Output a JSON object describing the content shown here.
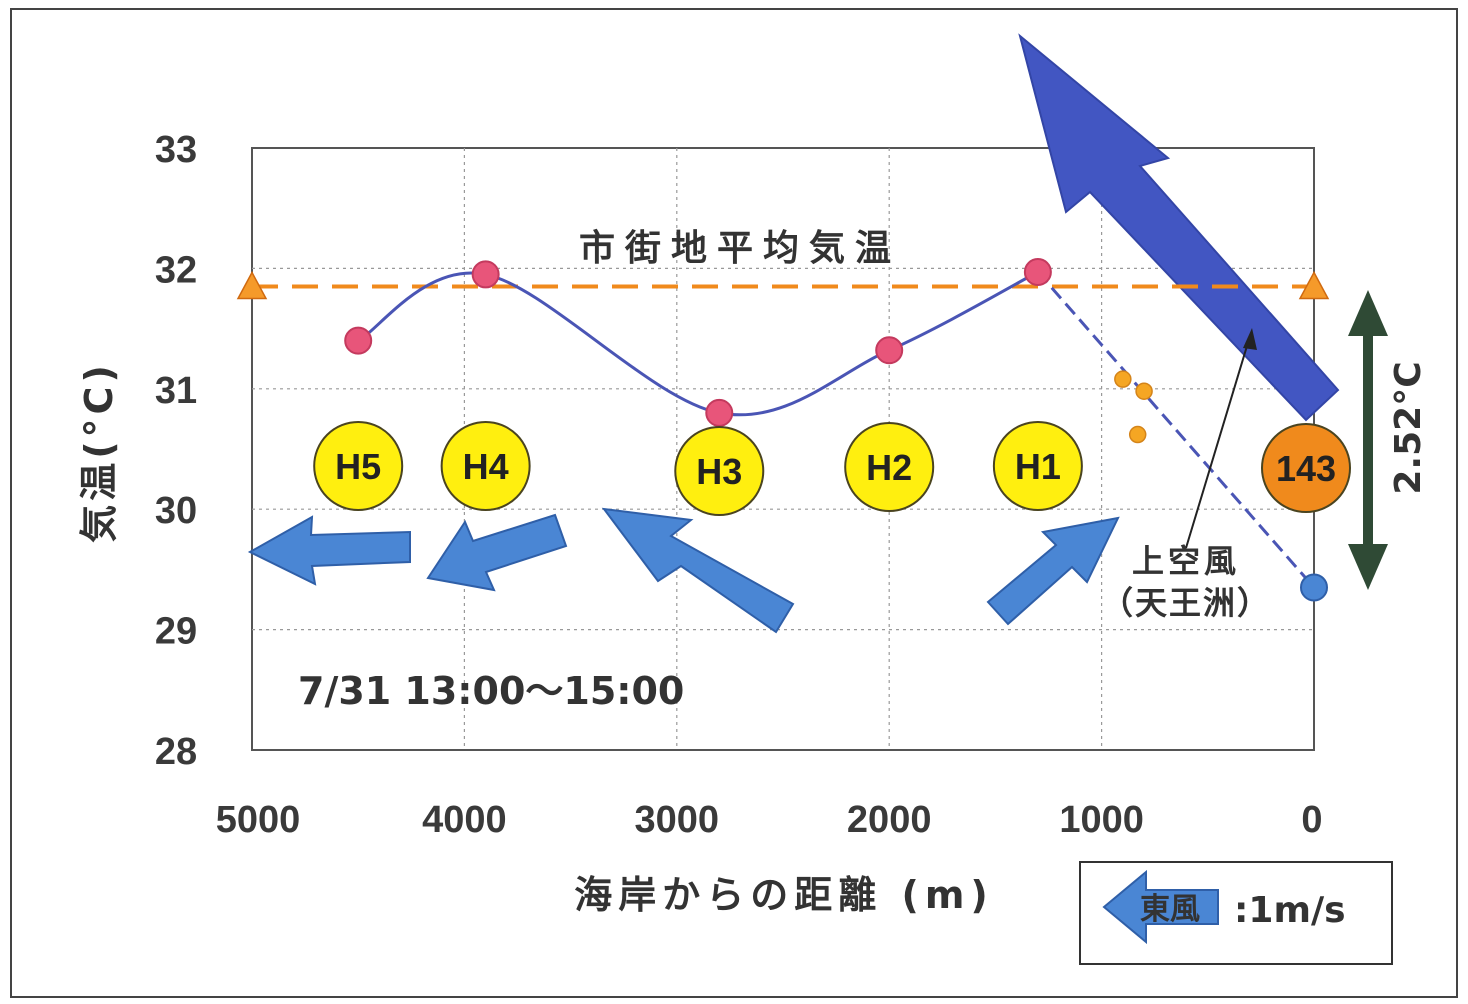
{
  "chart_data": {
    "type": "line",
    "xlabel": "海岸からの距離 (m)",
    "ylabel": "気温(°C)",
    "xlim": [
      5000,
      0
    ],
    "ylim": [
      28,
      33
    ],
    "x_ticks": [
      "5000",
      "4000",
      "3000",
      "2000",
      "1000",
      "0"
    ],
    "y_ticks": [
      "28",
      "29",
      "30",
      "31",
      "32",
      "33"
    ],
    "grid": true,
    "series": [
      {
        "style": "smooth-solid",
        "color": "#4a55b5",
        "points": [
          {
            "x": 4500,
            "y": 31.4
          },
          {
            "x": 3900,
            "y": 31.95
          },
          {
            "x": 2800,
            "y": 30.8
          },
          {
            "x": 2000,
            "y": 31.32
          },
          {
            "x": 1300,
            "y": 31.97
          }
        ]
      },
      {
        "style": "dashed",
        "color": "#4a55b5",
        "points": [
          {
            "x": 1300,
            "y": 31.97
          },
          {
            "x": 0,
            "y": 29.35
          }
        ]
      }
    ],
    "reference_line": {
      "label": "市街地平均気温",
      "y": 31.85,
      "color": "#f08a1c"
    },
    "orange_dots": [
      {
        "x": 900,
        "y": 31.08
      },
      {
        "x": 800,
        "y": 30.98
      },
      {
        "x": 830,
        "y": 30.62
      }
    ],
    "sites": [
      {
        "label": "H5",
        "x": 4500
      },
      {
        "label": "H4",
        "x": 3900
      },
      {
        "label": "H3",
        "x": 2800
      },
      {
        "label": "H2",
        "x": 2000
      },
      {
        "label": "H1",
        "x": 1300
      },
      {
        "label": "143",
        "x": 0
      }
    ],
    "annotations": {
      "period": "7/31 13:00～15:00",
      "diff": "2.52°C",
      "upper_wind_line1": "上空風",
      "upper_wind_line2": "（天王洲）"
    },
    "legend": {
      "arrow_label": "東風",
      "scale_text": ":1m/s"
    }
  }
}
